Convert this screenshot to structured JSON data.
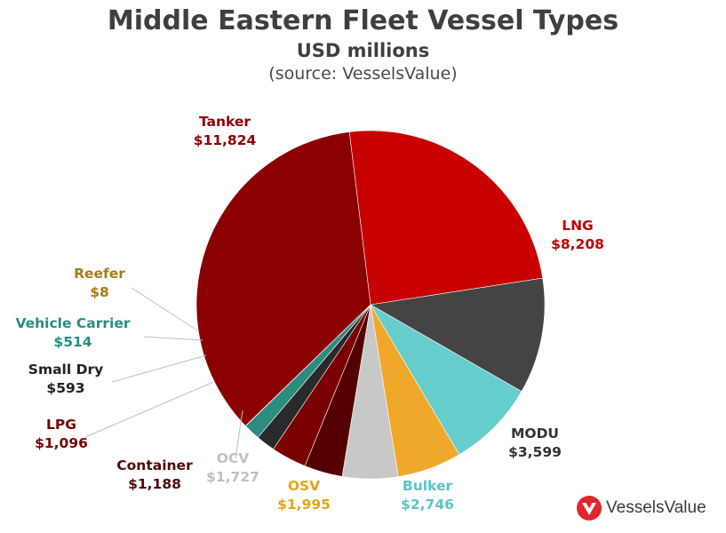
{
  "header": {
    "title": "Middle Eastern Fleet Vessel Types",
    "subtitle": "USD millions",
    "source": "(source: VesselsValue)"
  },
  "logo": {
    "text": "VesselsValue",
    "icon": "vesselsvalue-logo-icon",
    "color": "#e3242b"
  },
  "chart_data": {
    "type": "pie",
    "title": "Middle Eastern Fleet Vessel Types",
    "subtitle": "USD millions",
    "start_angle_deg": 353,
    "direction": "clockwise",
    "slices": [
      {
        "name": "LNG",
        "value": 8208,
        "value_label": "$8,208",
        "color": "#c80000",
        "label_color": "#c00000"
      },
      {
        "name": "MODU",
        "value": 3599,
        "value_label": "$3,599",
        "color": "#444444",
        "label_color": "#333333"
      },
      {
        "name": "Bulker",
        "value": 2746,
        "value_label": "$2,746",
        "color": "#66cdcc",
        "label_color": "#5ec4c4"
      },
      {
        "name": "OSV",
        "value": 1995,
        "value_label": "$1,995",
        "color": "#f0a82a",
        "label_color": "#e8a317"
      },
      {
        "name": "OCV",
        "value": 1727,
        "value_label": "$1,727",
        "color": "#c8c8c8",
        "label_color": "#c0c0c0"
      },
      {
        "name": "Container",
        "value": 1188,
        "value_label": "$1,188",
        "color": "#540000",
        "label_color": "#4d0a0a"
      },
      {
        "name": "LPG",
        "value": 1096,
        "value_label": "$1,096",
        "color": "#7a0000",
        "label_color": "#7a0000"
      },
      {
        "name": "Small Dry",
        "value": 593,
        "value_label": "$593",
        "color": "#2a2a2a",
        "label_color": "#222222"
      },
      {
        "name": "Vehicle Carrier",
        "value": 514,
        "value_label": "$514",
        "color": "#2e8b80",
        "label_color": "#2a8c80"
      },
      {
        "name": "Reefer",
        "value": 8,
        "value_label": "$8",
        "color": "#b08a2e",
        "label_color": "#a67c1a"
      },
      {
        "name": "Tanker",
        "value": 11824,
        "value_label": "$11,824",
        "color": "#8b0000",
        "label_color": "#8b0000"
      }
    ]
  }
}
